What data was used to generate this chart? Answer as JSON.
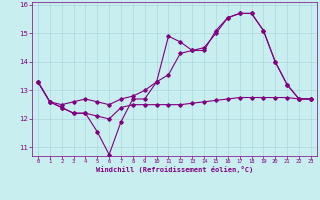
{
  "title": "",
  "xlabel": "Windchill (Refroidissement éolien,°C)",
  "background_color": "#c8eef0",
  "grid_color": "#aad8dc",
  "line_color": "#800080",
  "xlim": [
    -0.5,
    23.5
  ],
  "ylim": [
    10.7,
    16.1
  ],
  "yticks": [
    11,
    12,
    13,
    14,
    15,
    16
  ],
  "xticks": [
    0,
    1,
    2,
    3,
    4,
    5,
    6,
    7,
    8,
    9,
    10,
    11,
    12,
    13,
    14,
    15,
    16,
    17,
    18,
    19,
    20,
    21,
    22,
    23
  ],
  "line1_x": [
    0,
    1,
    2,
    3,
    4,
    5,
    6,
    7,
    8,
    9,
    10,
    11,
    12,
    13,
    14,
    15,
    16,
    17,
    18,
    19,
    20,
    21,
    22,
    23
  ],
  "line1_y": [
    13.3,
    12.6,
    12.4,
    12.2,
    12.2,
    11.55,
    10.75,
    11.9,
    12.7,
    12.7,
    13.3,
    14.9,
    14.7,
    14.4,
    14.4,
    15.1,
    15.55,
    15.7,
    15.7,
    15.1,
    14.0,
    13.2,
    12.7,
    12.7
  ],
  "line2_x": [
    0,
    1,
    2,
    3,
    4,
    5,
    6,
    7,
    8,
    9,
    10,
    11,
    12,
    13,
    14,
    15,
    16,
    17,
    18,
    19,
    20,
    21,
    22,
    23
  ],
  "line2_y": [
    13.3,
    12.6,
    12.5,
    12.6,
    12.7,
    12.6,
    12.5,
    12.7,
    12.8,
    13.0,
    13.3,
    13.55,
    14.3,
    14.4,
    14.5,
    15.0,
    15.55,
    15.7,
    15.7,
    15.1,
    14.0,
    13.2,
    12.7,
    12.7
  ],
  "line3_x": [
    0,
    1,
    2,
    3,
    4,
    5,
    6,
    7,
    8,
    9,
    10,
    11,
    12,
    13,
    14,
    15,
    16,
    17,
    18,
    19,
    20,
    21,
    22,
    23
  ],
  "line3_y": [
    13.3,
    12.6,
    12.4,
    12.2,
    12.2,
    12.1,
    12.0,
    12.4,
    12.5,
    12.5,
    12.5,
    12.5,
    12.5,
    12.55,
    12.6,
    12.65,
    12.7,
    12.75,
    12.75,
    12.75,
    12.75,
    12.75,
    12.7,
    12.7
  ]
}
